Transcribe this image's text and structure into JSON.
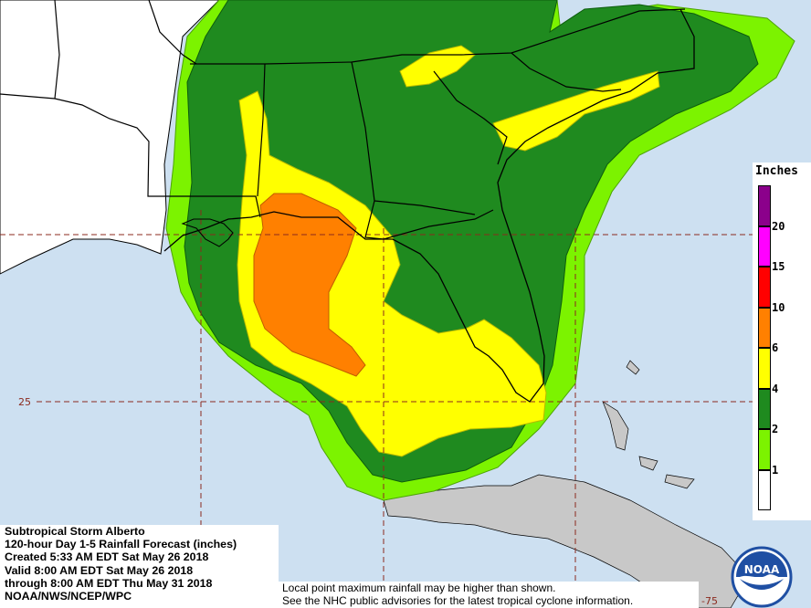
{
  "info": {
    "storm_name": "Subtropical Storm Alberto",
    "product": "120-hour Day 1-5 Rainfall Forecast (inches)",
    "created": "Created 5:33 AM EDT Sat May 26 2018",
    "valid": "Valid 8:00 AM EDT Sat May 26 2018",
    "through": "through 8:00 AM EDT Thu May 31 2018",
    "agency": "NOAA/NWS/NCEP/WPC"
  },
  "notes": {
    "line1": "Local point maximum rainfall may be higher than shown.",
    "line2": "See the NHC public advisories for the latest tropical cyclone information."
  },
  "grid_labels": {
    "lat_label": "25",
    "lon_label": "-75"
  },
  "legend": {
    "title": "Inches",
    "bins": [
      {
        "label": "",
        "color": "#ffffff"
      },
      {
        "label": "1",
        "color": "#7cf300"
      },
      {
        "label": "2",
        "color": "#1f8a1f"
      },
      {
        "label": "4",
        "color": "#ffff00"
      },
      {
        "label": "6",
        "color": "#ff8000"
      },
      {
        "label": "10",
        "color": "#ff0000"
      },
      {
        "label": "15",
        "color": "#ff00ff"
      },
      {
        "label": "20",
        "color": "#8b008b"
      }
    ]
  },
  "logo": {
    "text": "NOAA",
    "color": "#1f4fa3"
  },
  "colors": {
    "ocean": "#cde0f1",
    "land_outside": "#ffffff",
    "cuba": "#c8c8c8",
    "grid": "#8b2a1e"
  }
}
